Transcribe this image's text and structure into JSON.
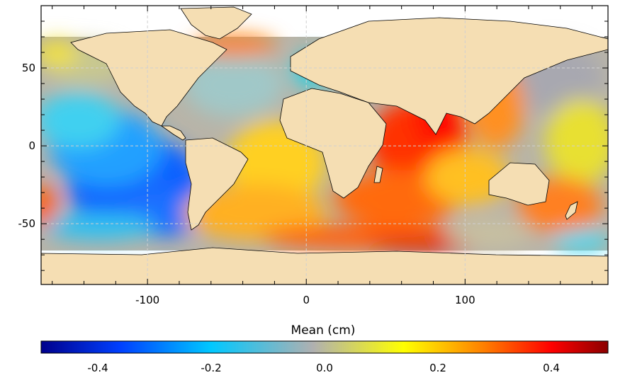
{
  "map": {
    "x_ticks": [
      {
        "label": "-100",
        "value": -100
      },
      {
        "label": "0",
        "value": 0
      },
      {
        "label": "100",
        "value": 100
      }
    ],
    "y_ticks": [
      {
        "label": "50",
        "value": 50
      },
      {
        "label": "0",
        "value": 0
      },
      {
        "label": "-50",
        "value": -50
      }
    ],
    "lon_range": [
      -167,
      190
    ],
    "lat_range": [
      -89,
      90
    ],
    "grid": true,
    "colors": {
      "land": "#f5deb3",
      "no_data": "#ffffff",
      "neutral": "#b0b0b0",
      "gridline": "#d0d0d0"
    }
  },
  "colorbar": {
    "title": "Mean (cm)",
    "range": [
      -0.5,
      0.5
    ],
    "ticks": [
      {
        "label": "-0.4",
        "value": -0.4
      },
      {
        "label": "-0.2",
        "value": -0.2
      },
      {
        "label": "0.0",
        "value": 0.0
      },
      {
        "label": "0.2",
        "value": 0.2
      },
      {
        "label": "0.4",
        "value": 0.4
      }
    ],
    "stops": [
      "#00008c",
      "#0040ff",
      "#00c8ff",
      "#b0b0b0",
      "#ffff00",
      "#ff8000",
      "#ff0000",
      "#8b0000"
    ]
  }
}
